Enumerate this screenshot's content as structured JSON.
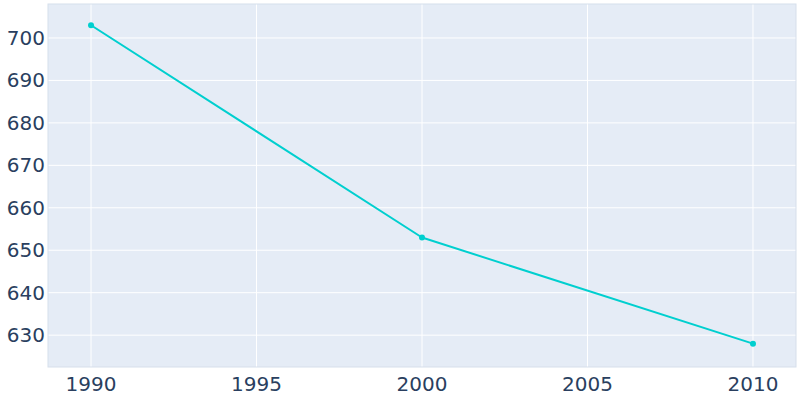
{
  "chart_data": {
    "type": "line",
    "x": [
      1990,
      2000,
      2010
    ],
    "values": [
      703,
      653,
      628
    ],
    "color": "#00cfcf",
    "marker": "circle",
    "xlim": [
      1988.7,
      2011.3
    ],
    "xticks": [
      1990,
      1995,
      2000,
      2005,
      2010
    ],
    "ylim": [
      622.5,
      708
    ],
    "yticks": [
      630,
      640,
      650,
      660,
      670,
      680,
      690,
      700
    ],
    "grid": true
  }
}
